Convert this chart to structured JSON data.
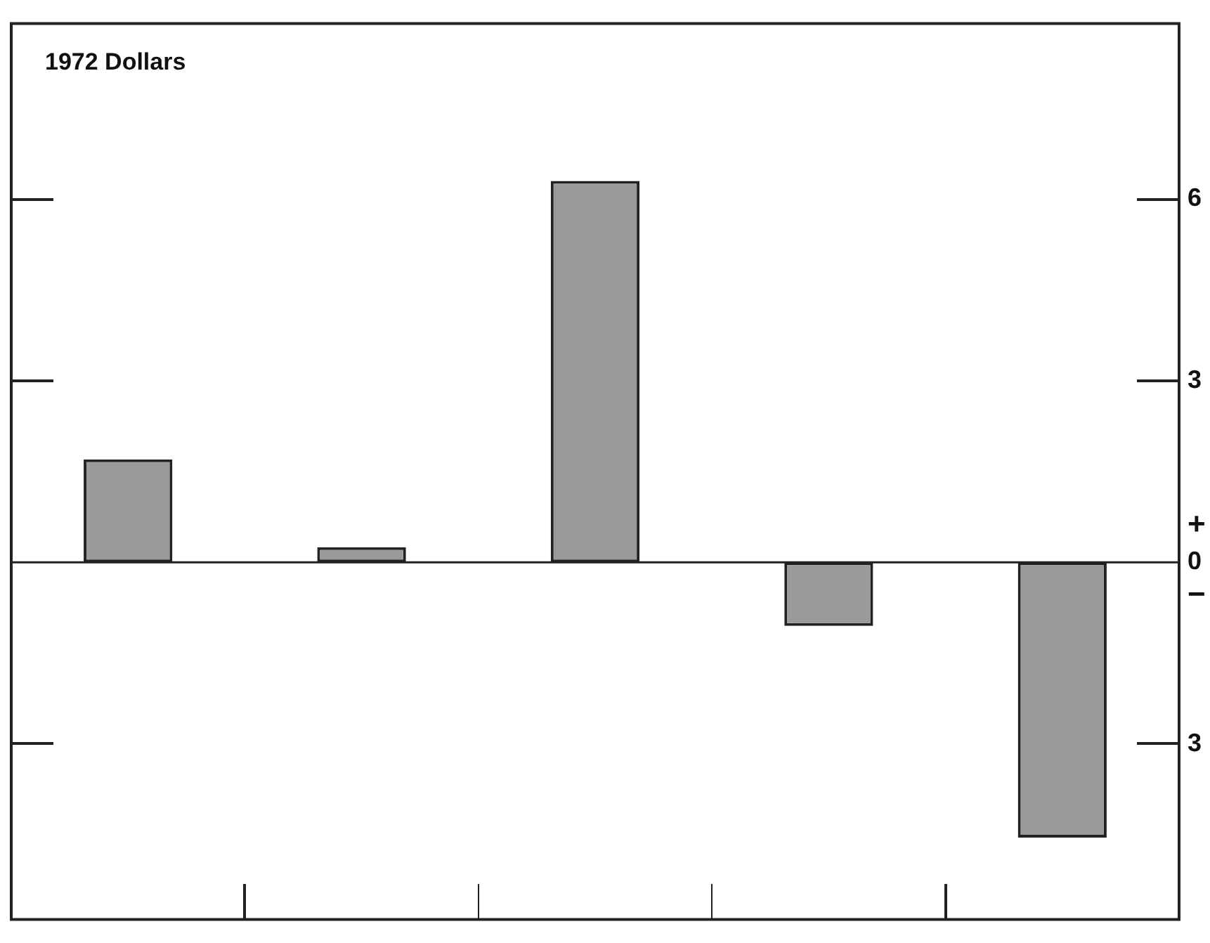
{
  "chart_data": {
    "type": "bar",
    "annotations": [
      "1972 Dollars",
      "+",
      "−"
    ],
    "categories": [
      null,
      null,
      null,
      null,
      null
    ],
    "values": [
      1.7,
      0.25,
      6.3,
      -1.05,
      -4.55
    ],
    "color": "#9a9a9a",
    "ylim": [
      -5.9,
      8.9
    ],
    "yticks": [
      {
        "value": -3,
        "label": "3"
      },
      0,
      3,
      6
    ],
    "ref_lines": [
      {
        "axis": "y",
        "value": 0
      }
    ],
    "grid": false,
    "legend": false
  }
}
